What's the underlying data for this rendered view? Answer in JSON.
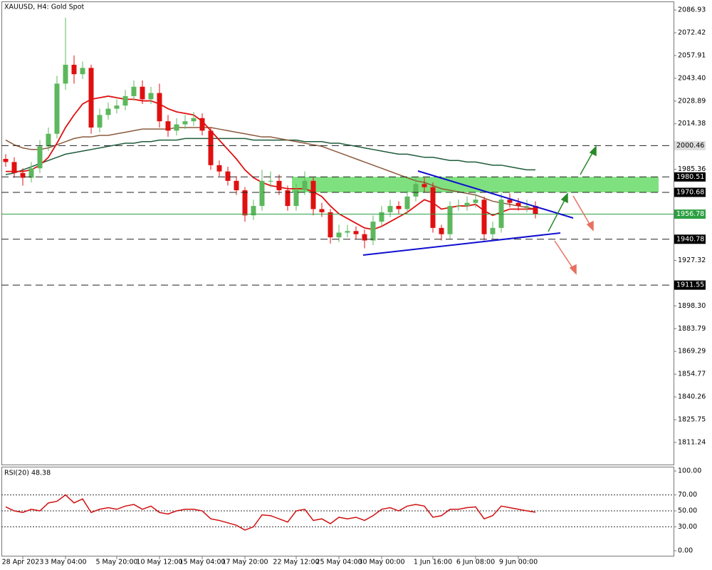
{
  "chart_data": [
    {
      "type": "candlestick",
      "title": "XAUUSD, H4:  Gold Spot",
      "categories": [
        null,
        null,
        "28 Apr 2023",
        null,
        null,
        null,
        null,
        "3 May 04:00",
        null,
        null,
        null,
        null,
        null,
        "5 May 20:00",
        null,
        null,
        null,
        null,
        "10 May 12:00",
        null,
        null,
        null,
        null,
        "15 May 04:00",
        null,
        null,
        null,
        null,
        "17 May 20:00",
        null,
        null,
        null,
        null,
        null,
        "22 May 12:00",
        null,
        null,
        null,
        null,
        "25 May 04:00",
        null,
        null,
        null,
        null,
        "30 May 00:00",
        null,
        null,
        null,
        null,
        null,
        "1 Jun 16:00",
        null,
        null,
        null,
        null,
        "6 Jun 08:00",
        null,
        null,
        null,
        null,
        "9 Jun 00:00",
        null,
        null
      ],
      "open": [
        1992,
        1990,
        1983,
        1980,
        1986,
        2000,
        2008,
        2040,
        2052,
        2046,
        2050,
        2012,
        2020,
        2024,
        2026,
        2032,
        2038,
        2030,
        2034,
        2016,
        2010,
        2014,
        2016,
        2018,
        2010,
        1988,
        1984,
        1978,
        1972,
        1956,
        1962,
        1978,
        1978,
        1972,
        1962,
        1972,
        1978,
        1960,
        1958,
        1942,
        1945,
        1946,
        1944,
        1940,
        1952,
        1958,
        1962,
        1960,
        1968,
        1976,
        1974,
        1948,
        1944,
        1962,
        1962,
        1964,
        1966,
        1944,
        1948,
        1966,
        1964,
        1962,
        1962
      ],
      "high": [
        1995,
        1993,
        1986,
        1990,
        2004,
        2012,
        2045,
        2082,
        2058,
        2054,
        2052,
        2024,
        2028,
        2030,
        2036,
        2042,
        2042,
        2038,
        2040,
        2020,
        2018,
        2020,
        2022,
        2021,
        2012,
        1991,
        1987,
        1981,
        1974,
        1966,
        1985,
        1984,
        1982,
        1975,
        1976,
        1984,
        1980,
        1964,
        1960,
        1950,
        1950,
        1949,
        1947,
        1956,
        1962,
        1966,
        1965,
        1972,
        1980,
        1980,
        1977,
        1950,
        1965,
        1966,
        1968,
        1970,
        1968,
        1952,
        1970,
        1970,
        1967,
        1966,
        1965
      ],
      "low": [
        1987,
        1980,
        1975,
        1977,
        1983,
        1997,
        2005,
        2036,
        2040,
        2043,
        2008,
        2009,
        2017,
        2021,
        2023,
        2029,
        2027,
        2027,
        2012,
        2006,
        2007,
        2011,
        2013,
        2007,
        1985,
        1981,
        1975,
        1969,
        1952,
        1953,
        1959,
        1974,
        1969,
        1959,
        1959,
        1969,
        1956,
        1955,
        1938,
        1939,
        1942,
        1941,
        1935,
        1937,
        1949,
        1955,
        1957,
        1957,
        1965,
        1971,
        1945,
        1940,
        1941,
        1959,
        1959,
        1961,
        1940,
        1941,
        1945,
        1961,
        1959,
        1958,
        1954
      ],
      "close": [
        1990,
        1983,
        1980,
        1986,
        2000,
        2008,
        2040,
        2052,
        2046,
        2050,
        2012,
        2020,
        2024,
        2026,
        2032,
        2038,
        2030,
        2034,
        2016,
        2010,
        2014,
        2016,
        2018,
        2010,
        1988,
        1984,
        1978,
        1972,
        1956,
        1962,
        1978,
        1978,
        1972,
        1962,
        1972,
        1978,
        1960,
        1958,
        1942,
        1945,
        1946,
        1944,
        1940,
        1952,
        1958,
        1962,
        1960,
        1968,
        1976,
        1974,
        1948,
        1944,
        1962,
        1962,
        1964,
        1966,
        1944,
        1948,
        1966,
        1964,
        1962,
        1962,
        1957
      ],
      "up_color": "#5cb85c",
      "down_color": "#e01010",
      "series": [
        {
          "color": "#1e5c3a",
          "values": [
            1982,
            1983,
            1985,
            1987,
            1989,
            1991,
            1993,
            1995,
            1996,
            1997,
            1998,
            1999,
            2000,
            2001,
            2002,
            2002,
            2003,
            2003,
            2004,
            2004,
            2004,
            2005,
            2005,
            2005,
            2005,
            2005,
            2005,
            2005,
            2005,
            2004,
            2004,
            2004,
            2004,
            2004,
            2004,
            2003,
            2003,
            2003,
            2002,
            2002,
            2001,
            2000,
            1999,
            1998,
            1997,
            1996,
            1995,
            1995,
            1994,
            1993,
            1993,
            1992,
            1991,
            1991,
            1990,
            1990,
            1989,
            1988,
            1988,
            1987,
            1986,
            1985,
            1985
          ]
        },
        {
          "color": "#8b5a3c",
          "values": [
            2004,
            2001,
            1999,
            1998,
            1998,
            1999,
            2001,
            2003,
            2005,
            2006,
            2006,
            2007,
            2007,
            2008,
            2009,
            2010,
            2011,
            2011,
            2011,
            2011,
            2012,
            2012,
            2012,
            2012,
            2012,
            2011,
            2010,
            2009,
            2008,
            2007,
            2006,
            2006,
            2005,
            2004,
            2003,
            2002,
            2001,
            2000,
            1998,
            1996,
            1994,
            1992,
            1990,
            1988,
            1986,
            1984,
            1982,
            1980,
            1978,
            1977,
            1975,
            1973,
            1972,
            1971,
            1970,
            1969,
            1967,
            1965,
            1964,
            1963,
            1962,
            1961,
            1960
          ]
        },
        {
          "color": "#e01010",
          "values": [
            1984,
            1984,
            1984,
            1985,
            1988,
            1993,
            2002,
            2012,
            2020,
            2027,
            2030,
            2031,
            2032,
            2031,
            2030,
            2030,
            2029,
            2029,
            2027,
            2024,
            2022,
            2021,
            2020,
            2016,
            2010,
            2004,
            1998,
            1992,
            1985,
            1980,
            1977,
            1975,
            1974,
            1973,
            1973,
            1973,
            1971,
            1968,
            1962,
            1957,
            1954,
            1951,
            1948,
            1947,
            1949,
            1952,
            1955,
            1958,
            1962,
            1966,
            1964,
            1960,
            1961,
            1962,
            1962,
            1963,
            1959,
            1956,
            1958,
            1960,
            1960,
            1960,
            1960
          ]
        }
      ],
      "ylim": [
        1797.16,
        2092.38
      ],
      "yticks": [
        2086.93,
        2072.42,
        2057.91,
        {
          "value": 2043.4,
          "label": "2043.40"
        },
        2028.89,
        2014.38,
        1985.36,
        1927.32,
        {
          "value": 1898.3,
          "label": "1898.30"
        },
        1883.79,
        1869.29,
        1854.77,
        1840.26,
        1825.75,
        1811.24
      ],
      "levels": [
        2000.46,
        1980.51,
        1970.68,
        1940.78,
        1911.55
      ],
      "current_price": 1956.78,
      "current_price_color": "#2ea043",
      "zone_color": "#7fe07f"
    },
    {
      "type": "line",
      "title": "RSI(20) 48.38",
      "color": "#d01010",
      "values": [
        55,
        50,
        48,
        52,
        50,
        60,
        62,
        70,
        60,
        65,
        48,
        52,
        54,
        52,
        56,
        58,
        52,
        56,
        48,
        46,
        50,
        52,
        52,
        50,
        40,
        38,
        35,
        32,
        26,
        30,
        45,
        44,
        40,
        36,
        50,
        52,
        38,
        40,
        34,
        42,
        40,
        42,
        38,
        44,
        52,
        54,
        50,
        56,
        58,
        56,
        42,
        44,
        52,
        52,
        54,
        55,
        40,
        44,
        56,
        54,
        52,
        50,
        48.38
      ],
      "ylim": [
        -6.25,
        105.4
      ],
      "yticks": [
        {
          "value": 100,
          "label": "100.00"
        },
        {
          "value": 70,
          "label": "70.00"
        },
        {
          "value": 50,
          "label": "50.00"
        },
        {
          "value": 30,
          "label": "30.00"
        },
        {
          "value": 0,
          "label": "0.00"
        }
      ],
      "grid_levels": [
        70,
        50,
        30
      ]
    }
  ]
}
